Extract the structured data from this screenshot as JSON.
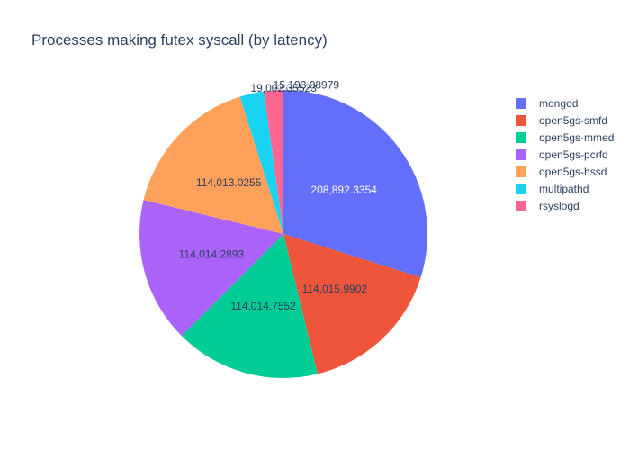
{
  "chart_data": {
    "type": "pie",
    "title": "Processes making futex syscall (by latency)",
    "categories": [
      "mongod",
      "open5gs-smfd",
      "open5gs-mmed",
      "open5gs-pcrfd",
      "open5gs-hssd",
      "multipathd",
      "rsyslogd"
    ],
    "values": [
      208892.3354,
      114015.9902,
      114014.7552,
      114014.2893,
      114013.0255,
      19002.35523,
      15193.08979
    ],
    "labels": [
      "208,892.3354",
      "114,015.9902",
      "114,014.7552",
      "114,014.2893",
      "114,013.0255",
      "19,002.35523",
      "15,193.08979"
    ],
    "colors": [
      "#636efa",
      "#EF553B",
      "#00cc96",
      "#ab63fa",
      "#FFA15A",
      "#19d3f3",
      "#FF6692"
    ],
    "legend_position": "top-right",
    "direction": "clockwise",
    "start": "top"
  }
}
